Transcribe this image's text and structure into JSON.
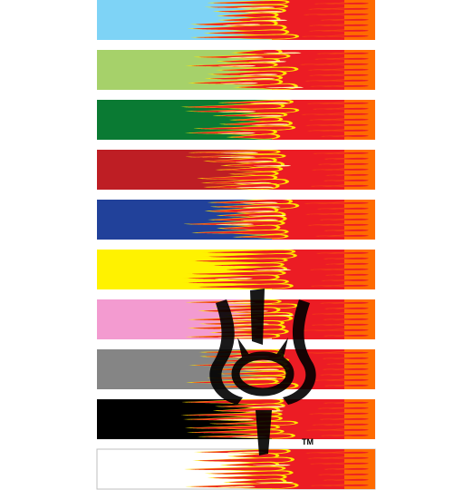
{
  "watermark": {
    "mark": "TM",
    "name": "decorative-emblem-watermark"
  },
  "strips": [
    {
      "name": "light-blue",
      "base": "#7ed3f6",
      "border": false
    },
    {
      "name": "light-green",
      "base": "#a6d16a",
      "border": false
    },
    {
      "name": "dark-green",
      "base": "#0a7a33",
      "border": false
    },
    {
      "name": "dark-red",
      "base": "#be1e24",
      "border": false
    },
    {
      "name": "blue",
      "base": "#21419a",
      "border": false
    },
    {
      "name": "yellow",
      "base": "#fff200",
      "border": false
    },
    {
      "name": "pink",
      "base": "#f39bd0",
      "border": false
    },
    {
      "name": "gray",
      "base": "#858585",
      "border": false
    },
    {
      "name": "black",
      "base": "#000000",
      "border": false
    },
    {
      "name": "white",
      "base": "#ffffff",
      "border": true
    }
  ],
  "flame_colors": {
    "orange": "#ff6a00",
    "red": "#ec1c24",
    "yellow": "#ffe600",
    "pale": "#fff6b0"
  }
}
